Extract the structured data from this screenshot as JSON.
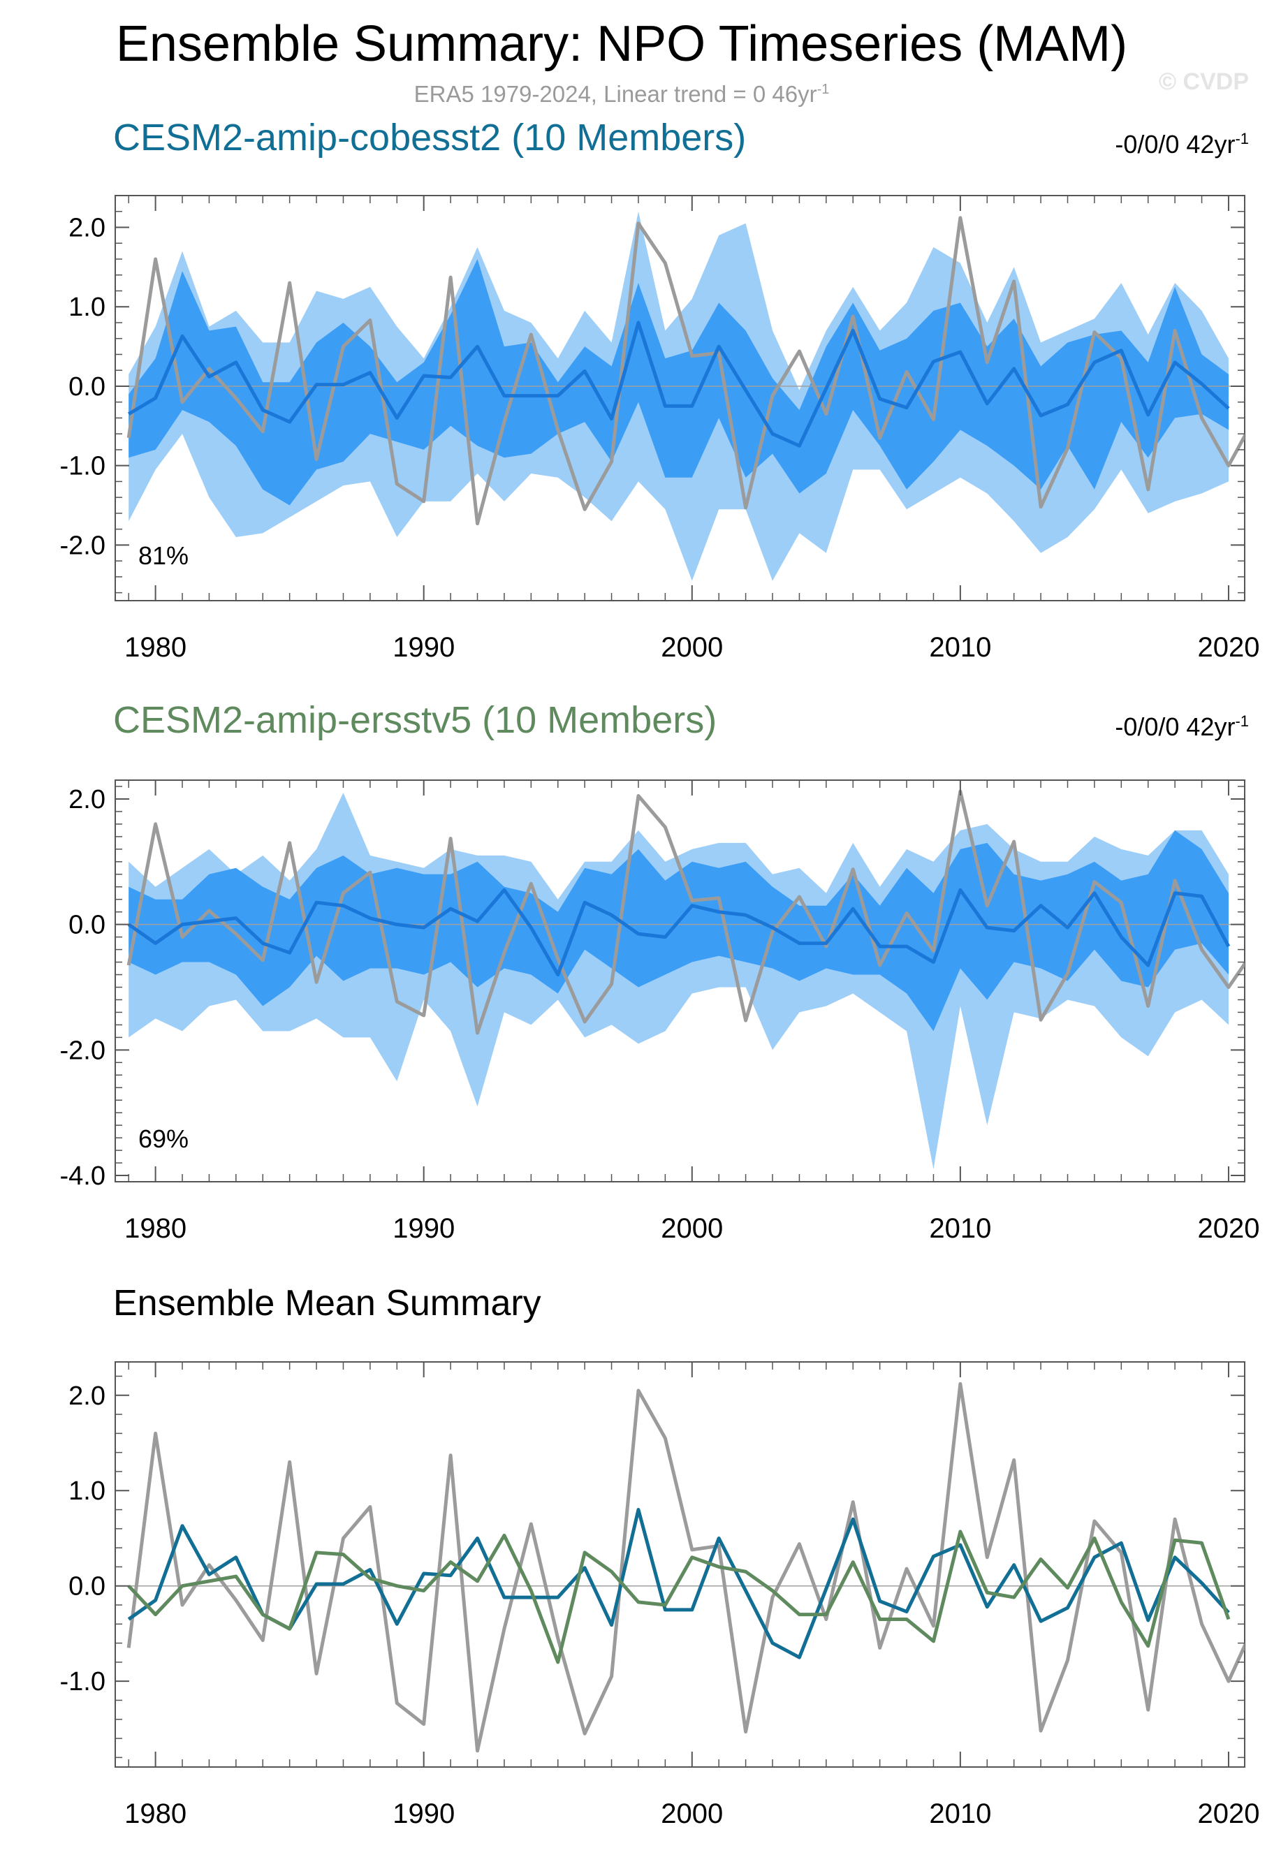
{
  "figure": {
    "title": "Ensemble Summary: NPO Timeseries (MAM)",
    "subtitle_prefix": "ERA5 1979-2024, Linear trend = 0 46yr",
    "subtitle_sup": "-1",
    "watermark": "© CVDP"
  },
  "colors": {
    "cesm_cobesst2": "#116e94",
    "cesm_ersstv5": "#5e8a5e",
    "obs": "#9b9b9b",
    "band_outer": "#9dcef8",
    "band_inner": "#3c9df5",
    "ens_mean": "#1a77d8",
    "zero_line": "#a0a0a0"
  },
  "chart_data": [
    {
      "type": "area",
      "title": "CESM2-amip-cobesst2 (10 Members)",
      "trend_label": "-0/0/0 42yr",
      "trend_sup": "-1",
      "percent_label": "81%",
      "xlim": [
        1978.5,
        2020.6
      ],
      "ylim": [
        -2.7,
        2.4
      ],
      "yticks": [
        2.0,
        1.0,
        0.0,
        -1.0,
        -2.0
      ],
      "ytick_labels": [
        "2.0",
        "1.0",
        "0.0",
        "-1.0",
        "-2.0"
      ],
      "xticks": [
        1980,
        1990,
        2000,
        2010,
        2020
      ],
      "xtick_labels": [
        "1980",
        "1990",
        "2000",
        "2010",
        "2020"
      ],
      "years": [
        1979,
        1980,
        1981,
        1982,
        1983,
        1984,
        1985,
        1986,
        1987,
        1988,
        1989,
        1990,
        1991,
        1992,
        1993,
        1994,
        1995,
        1996,
        1997,
        1998,
        1999,
        2000,
        2001,
        2002,
        2003,
        2004,
        2005,
        2006,
        2007,
        2008,
        2009,
        2010,
        2011,
        2012,
        2013,
        2014,
        2015,
        2016,
        2017,
        2018,
        2019,
        2020
      ],
      "range_max": [
        0.15,
        0.75,
        1.7,
        0.75,
        0.95,
        0.55,
        0.55,
        1.2,
        1.1,
        1.25,
        0.75,
        0.35,
        1.0,
        1.75,
        0.95,
        0.8,
        0.35,
        0.95,
        0.55,
        2.2,
        0.7,
        1.1,
        1.9,
        2.05,
        0.7,
        -0.05,
        0.7,
        1.25,
        0.7,
        1.05,
        1.75,
        1.55,
        0.8,
        1.5,
        0.55,
        0.7,
        0.85,
        1.3,
        0.65,
        1.3,
        0.95,
        0.35
      ],
      "range_min": [
        -1.7,
        -1.05,
        -0.6,
        -1.4,
        -1.9,
        -1.85,
        -1.65,
        -1.45,
        -1.25,
        -1.2,
        -1.9,
        -1.45,
        -1.45,
        -1.1,
        -1.45,
        -1.1,
        -1.15,
        -1.4,
        -1.7,
        -1.2,
        -1.55,
        -2.45,
        -1.55,
        -1.55,
        -2.45,
        -1.85,
        -2.1,
        -1.05,
        -1.05,
        -1.55,
        -1.35,
        -1.15,
        -1.35,
        -1.7,
        -2.1,
        -1.9,
        -1.55,
        -1.05,
        -1.6,
        -1.45,
        -1.35,
        -1.2
      ],
      "iqr_max": [
        -0.1,
        0.35,
        1.45,
        0.7,
        0.75,
        0.05,
        0.05,
        0.55,
        0.8,
        0.5,
        0.05,
        0.3,
        0.9,
        1.6,
        0.5,
        0.55,
        0.05,
        0.5,
        0.25,
        1.3,
        0.35,
        0.45,
        1.05,
        0.7,
        0.1,
        -0.3,
        0.5,
        1.05,
        0.45,
        0.6,
        0.95,
        1.05,
        0.5,
        0.85,
        0.25,
        0.55,
        0.65,
        0.7,
        0.3,
        1.25,
        0.4,
        0.15
      ],
      "iqr_min": [
        -0.9,
        -0.8,
        -0.3,
        -0.45,
        -0.75,
        -1.3,
        -1.5,
        -1.05,
        -0.95,
        -0.6,
        -0.7,
        -0.8,
        -0.5,
        -0.75,
        -0.9,
        -0.85,
        -0.6,
        -0.45,
        -0.95,
        -0.2,
        -1.15,
        -1.15,
        -0.4,
        -1.15,
        -0.85,
        -1.35,
        -1.1,
        -0.3,
        -0.75,
        -1.3,
        -0.95,
        -0.55,
        -0.75,
        -1.0,
        -1.3,
        -0.75,
        -1.3,
        -0.45,
        -0.9,
        -0.4,
        -0.35,
        -0.55
      ],
      "ens_mean": [
        -0.35,
        -0.15,
        0.63,
        0.12,
        0.3,
        -0.3,
        -0.45,
        0.02,
        0.02,
        0.17,
        -0.4,
        0.13,
        0.11,
        0.5,
        -0.12,
        -0.12,
        -0.12,
        0.19,
        -0.41,
        0.8,
        -0.25,
        -0.25,
        0.5,
        -0.05,
        -0.6,
        -0.75,
        -0.03,
        0.7,
        -0.16,
        -0.27,
        0.31,
        0.43,
        -0.22,
        0.22,
        -0.37,
        -0.23,
        0.3,
        0.45,
        -0.36,
        0.3,
        0.03,
        -0.28
      ],
      "obs_years": [
        1979,
        1980,
        1981,
        1982,
        1983,
        1984,
        1985,
        1986,
        1987,
        1988,
        1989,
        1990,
        1991,
        1992,
        1993,
        1994,
        1995,
        1996,
        1997,
        1998,
        1999,
        2000,
        2001,
        2002,
        2003,
        2004,
        2005,
        2006,
        2007,
        2008,
        2009,
        2010,
        2011,
        2012,
        2013,
        2014,
        2015,
        2016,
        2017,
        2018,
        2019,
        2020,
        2021
      ],
      "obs_values": [
        -0.65,
        1.6,
        -0.2,
        0.22,
        -0.15,
        -0.57,
        1.3,
        -0.92,
        0.5,
        0.83,
        -1.23,
        -1.45,
        1.37,
        -1.73,
        -0.45,
        0.65,
        -0.55,
        -1.55,
        -0.95,
        2.05,
        1.55,
        0.38,
        0.42,
        -1.53,
        -0.12,
        0.44,
        -0.35,
        0.88,
        -0.65,
        0.18,
        -0.42,
        2.12,
        0.3,
        1.32,
        -1.52,
        -0.78,
        0.68,
        0.35,
        -1.3,
        0.7,
        -0.4,
        -1.0,
        -0.38
      ]
    },
    {
      "type": "area",
      "title": "CESM2-amip-ersstv5 (10 Members)",
      "trend_label": "-0/0/0 42yr",
      "trend_sup": "-1",
      "percent_label": "69%",
      "xlim": [
        1978.5,
        2020.6
      ],
      "ylim": [
        -4.1,
        2.3
      ],
      "yticks": [
        2.0,
        0.0,
        -2.0,
        -4.0
      ],
      "ytick_labels": [
        "2.0",
        "0.0",
        "-2.0",
        "-4.0"
      ],
      "xticks": [
        1980,
        1990,
        2000,
        2010,
        2020
      ],
      "xtick_labels": [
        "1980",
        "1990",
        "2000",
        "2010",
        "2020"
      ],
      "years": [
        1979,
        1980,
        1981,
        1982,
        1983,
        1984,
        1985,
        1986,
        1987,
        1988,
        1989,
        1990,
        1991,
        1992,
        1993,
        1994,
        1995,
        1996,
        1997,
        1998,
        1999,
        2000,
        2001,
        2002,
        2003,
        2004,
        2005,
        2006,
        2007,
        2008,
        2009,
        2010,
        2011,
        2012,
        2013,
        2014,
        2015,
        2016,
        2017,
        2018,
        2019,
        2020
      ],
      "range_max": [
        1.0,
        0.6,
        0.9,
        1.2,
        0.8,
        1.1,
        0.7,
        1.2,
        2.1,
        1.1,
        1.0,
        0.9,
        1.2,
        1.1,
        1.1,
        1.0,
        0.4,
        1.0,
        1.0,
        1.5,
        1.0,
        1.2,
        1.3,
        1.3,
        0.8,
        0.9,
        0.5,
        1.3,
        0.6,
        1.2,
        1.0,
        1.5,
        1.6,
        1.2,
        1.0,
        1.0,
        1.4,
        1.2,
        1.1,
        1.5,
        1.5,
        0.8
      ],
      "range_min": [
        -1.8,
        -1.5,
        -1.7,
        -1.3,
        -1.2,
        -1.7,
        -1.7,
        -1.5,
        -1.8,
        -1.8,
        -2.5,
        -1.2,
        -1.7,
        -2.9,
        -1.4,
        -1.6,
        -1.2,
        -1.8,
        -1.6,
        -1.9,
        -1.7,
        -1.1,
        -1.0,
        -1.0,
        -2.0,
        -1.4,
        -1.3,
        -1.1,
        -1.4,
        -1.7,
        -3.9,
        -1.3,
        -3.2,
        -1.4,
        -1.5,
        -1.2,
        -1.3,
        -1.8,
        -2.1,
        -1.4,
        -1.2,
        -1.6
      ],
      "iqr_max": [
        0.6,
        0.4,
        0.4,
        0.8,
        0.9,
        0.6,
        0.4,
        0.9,
        1.1,
        0.8,
        0.9,
        0.8,
        0.8,
        1.0,
        0.6,
        0.5,
        0.2,
        0.9,
        0.8,
        1.2,
        0.7,
        1.0,
        0.9,
        1.0,
        0.6,
        0.3,
        0.3,
        0.8,
        0.3,
        0.9,
        0.5,
        1.2,
        1.3,
        0.8,
        0.7,
        0.8,
        1.0,
        0.7,
        0.8,
        1.5,
        1.2,
        0.5
      ],
      "iqr_min": [
        -0.6,
        -0.8,
        -0.6,
        -0.6,
        -0.8,
        -1.3,
        -1.0,
        -0.5,
        -0.9,
        -0.7,
        -0.7,
        -0.8,
        -0.6,
        -1.0,
        -0.7,
        -0.8,
        -1.1,
        -0.4,
        -0.7,
        -1.0,
        -0.8,
        -0.6,
        -0.5,
        -0.6,
        -0.7,
        -0.9,
        -0.7,
        -0.8,
        -0.8,
        -1.1,
        -1.7,
        -0.7,
        -1.2,
        -0.6,
        -0.7,
        -0.9,
        -0.4,
        -0.9,
        -1.0,
        -0.4,
        -0.3,
        -0.8
      ],
      "ens_mean": [
        0.0,
        -0.3,
        0.0,
        0.05,
        0.1,
        -0.3,
        -0.45,
        0.35,
        0.3,
        0.1,
        0.0,
        -0.05,
        0.25,
        0.05,
        0.55,
        -0.05,
        -0.8,
        0.35,
        0.15,
        -0.15,
        -0.2,
        0.3,
        0.2,
        0.15,
        -0.05,
        -0.3,
        -0.3,
        0.25,
        -0.35,
        -0.35,
        -0.6,
        0.55,
        -0.05,
        -0.1,
        0.3,
        -0.05,
        0.5,
        -0.2,
        -0.65,
        0.5,
        0.45,
        -0.35
      ],
      "obs_years": [
        1979,
        1980,
        1981,
        1982,
        1983,
        1984,
        1985,
        1986,
        1987,
        1988,
        1989,
        1990,
        1991,
        1992,
        1993,
        1994,
        1995,
        1996,
        1997,
        1998,
        1999,
        2000,
        2001,
        2002,
        2003,
        2004,
        2005,
        2006,
        2007,
        2008,
        2009,
        2010,
        2011,
        2012,
        2013,
        2014,
        2015,
        2016,
        2017,
        2018,
        2019,
        2020,
        2021
      ],
      "obs_values": [
        -0.65,
        1.6,
        -0.2,
        0.22,
        -0.15,
        -0.57,
        1.3,
        -0.92,
        0.5,
        0.83,
        -1.23,
        -1.45,
        1.37,
        -1.73,
        -0.45,
        0.65,
        -0.55,
        -1.55,
        -0.95,
        2.05,
        1.55,
        0.38,
        0.42,
        -1.53,
        -0.12,
        0.44,
        -0.35,
        0.88,
        -0.65,
        0.18,
        -0.42,
        2.12,
        0.3,
        1.32,
        -1.52,
        -0.78,
        0.68,
        0.35,
        -1.3,
        0.7,
        -0.4,
        -1.0,
        -0.38
      ]
    },
    {
      "type": "line",
      "title": "Ensemble Mean Summary",
      "xlim": [
        1978.5,
        2020.6
      ],
      "ylim": [
        -1.9,
        2.35
      ],
      "yticks": [
        2.0,
        1.0,
        0.0,
        -1.0
      ],
      "ytick_labels": [
        "2.0",
        "1.0",
        "0.0",
        "-1.0"
      ],
      "xticks": [
        1980,
        1990,
        2000,
        2010,
        2020
      ],
      "xtick_labels": [
        "1980",
        "1990",
        "2000",
        "2010",
        "2020"
      ],
      "series": [
        {
          "name": "CESM2-amip-cobesst2",
          "color_key": "cesm_cobesst2",
          "x": [
            1979,
            1980,
            1981,
            1982,
            1983,
            1984,
            1985,
            1986,
            1987,
            1988,
            1989,
            1990,
            1991,
            1992,
            1993,
            1994,
            1995,
            1996,
            1997,
            1998,
            1999,
            2000,
            2001,
            2002,
            2003,
            2004,
            2005,
            2006,
            2007,
            2008,
            2009,
            2010,
            2011,
            2012,
            2013,
            2014,
            2015,
            2016,
            2017,
            2018,
            2019,
            2020
          ],
          "values": [
            -0.35,
            -0.15,
            0.63,
            0.12,
            0.3,
            -0.3,
            -0.45,
            0.02,
            0.02,
            0.17,
            -0.4,
            0.13,
            0.11,
            0.5,
            -0.12,
            -0.12,
            -0.12,
            0.19,
            -0.41,
            0.8,
            -0.25,
            -0.25,
            0.5,
            -0.05,
            -0.6,
            -0.75,
            -0.03,
            0.7,
            -0.16,
            -0.27,
            0.31,
            0.43,
            -0.22,
            0.22,
            -0.37,
            -0.23,
            0.3,
            0.45,
            -0.36,
            0.3,
            0.03,
            -0.28
          ]
        },
        {
          "name": "CESM2-amip-ersstv5",
          "color_key": "cesm_ersstv5",
          "x": [
            1979,
            1980,
            1981,
            1982,
            1983,
            1984,
            1985,
            1986,
            1987,
            1988,
            1989,
            1990,
            1991,
            1992,
            1993,
            1994,
            1995,
            1996,
            1997,
            1998,
            1999,
            2000,
            2001,
            2002,
            2003,
            2004,
            2005,
            2006,
            2007,
            2008,
            2009,
            2010,
            2011,
            2012,
            2013,
            2014,
            2015,
            2016,
            2017,
            2018,
            2019,
            2020
          ],
          "values": [
            0.0,
            -0.3,
            0.0,
            0.05,
            0.1,
            -0.3,
            -0.45,
            0.35,
            0.33,
            0.08,
            0.0,
            -0.05,
            0.25,
            0.05,
            0.53,
            -0.05,
            -0.8,
            0.35,
            0.15,
            -0.17,
            -0.2,
            0.3,
            0.2,
            0.15,
            -0.05,
            -0.3,
            -0.3,
            0.25,
            -0.35,
            -0.35,
            -0.58,
            0.57,
            -0.07,
            -0.12,
            0.28,
            -0.02,
            0.5,
            -0.17,
            -0.63,
            0.48,
            0.45,
            -0.35
          ]
        },
        {
          "name": "ERA5",
          "color_key": "obs",
          "x": [
            1979,
            1980,
            1981,
            1982,
            1983,
            1984,
            1985,
            1986,
            1987,
            1988,
            1989,
            1990,
            1991,
            1992,
            1993,
            1994,
            1995,
            1996,
            1997,
            1998,
            1999,
            2000,
            2001,
            2002,
            2003,
            2004,
            2005,
            2006,
            2007,
            2008,
            2009,
            2010,
            2011,
            2012,
            2013,
            2014,
            2015,
            2016,
            2017,
            2018,
            2019,
            2020,
            2021
          ],
          "values": [
            -0.65,
            1.6,
            -0.2,
            0.22,
            -0.15,
            -0.57,
            1.3,
            -0.92,
            0.5,
            0.83,
            -1.23,
            -1.45,
            1.37,
            -1.73,
            -0.45,
            0.65,
            -0.55,
            -1.55,
            -0.95,
            2.05,
            1.55,
            0.38,
            0.42,
            -1.53,
            -0.12,
            0.44,
            -0.35,
            0.88,
            -0.65,
            0.18,
            -0.42,
            2.12,
            0.3,
            1.32,
            -1.52,
            -0.78,
            0.68,
            0.35,
            -1.3,
            0.7,
            -0.4,
            -1.0,
            -0.38
          ]
        }
      ]
    }
  ]
}
